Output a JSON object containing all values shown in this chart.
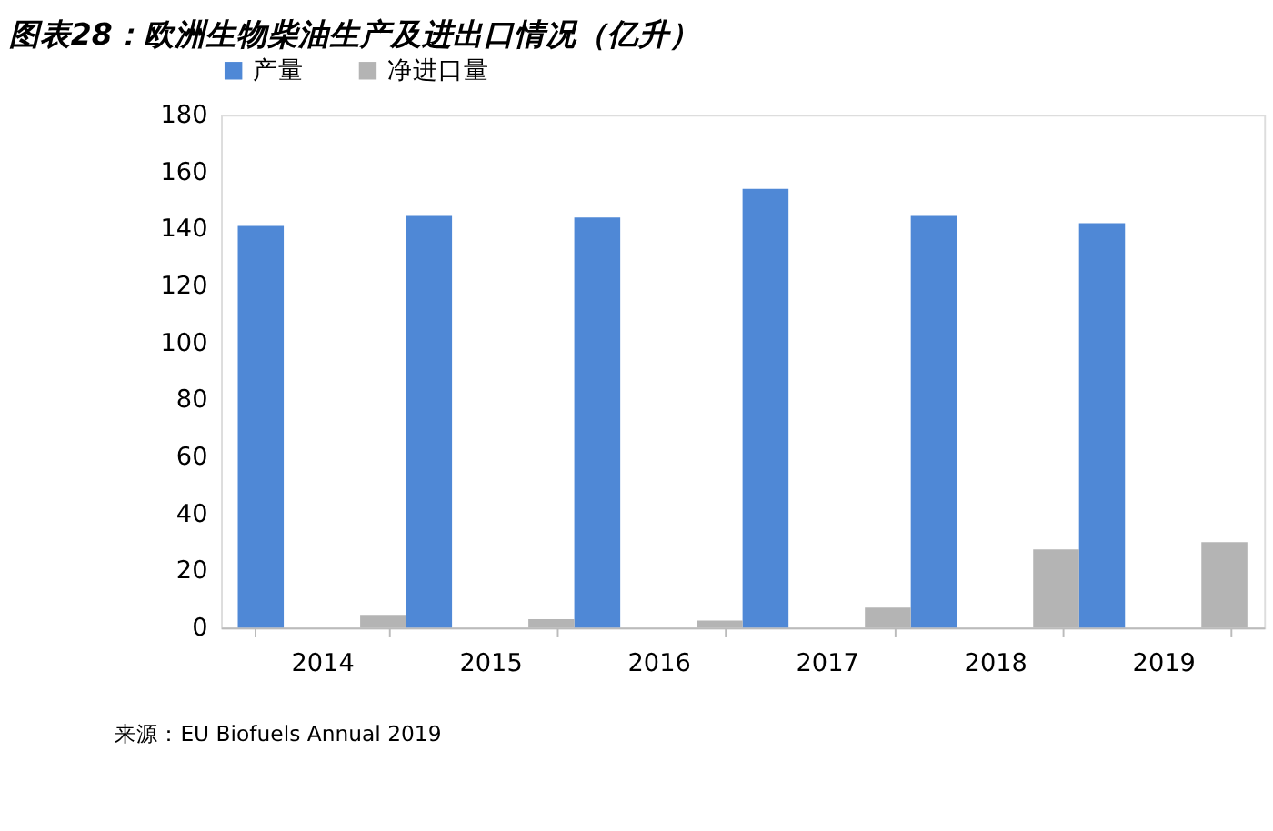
{
  "chart_data": {
    "type": "bar",
    "title": "图表28：欧洲生物柴油生产及进出口情况（亿升）",
    "categories": [
      "2014",
      "2015",
      "2016",
      "2017",
      "2018",
      "2019"
    ],
    "series": [
      {
        "name": "产量",
        "color": "#4f88d6",
        "values": [
          141,
          144.5,
          144,
          154,
          144.5,
          142
        ]
      },
      {
        "name": "净进口量",
        "color": "#b4b4b4",
        "values": [
          4.5,
          3,
          2.5,
          7,
          27.5,
          30
        ]
      }
    ],
    "ylim": [
      0,
      180
    ],
    "yticks": [
      0,
      20,
      40,
      60,
      80,
      100,
      120,
      140,
      160,
      180
    ],
    "grid": false,
    "legend": "top",
    "annotations": [
      "来源：EU Biofuels Annual 2019"
    ]
  }
}
